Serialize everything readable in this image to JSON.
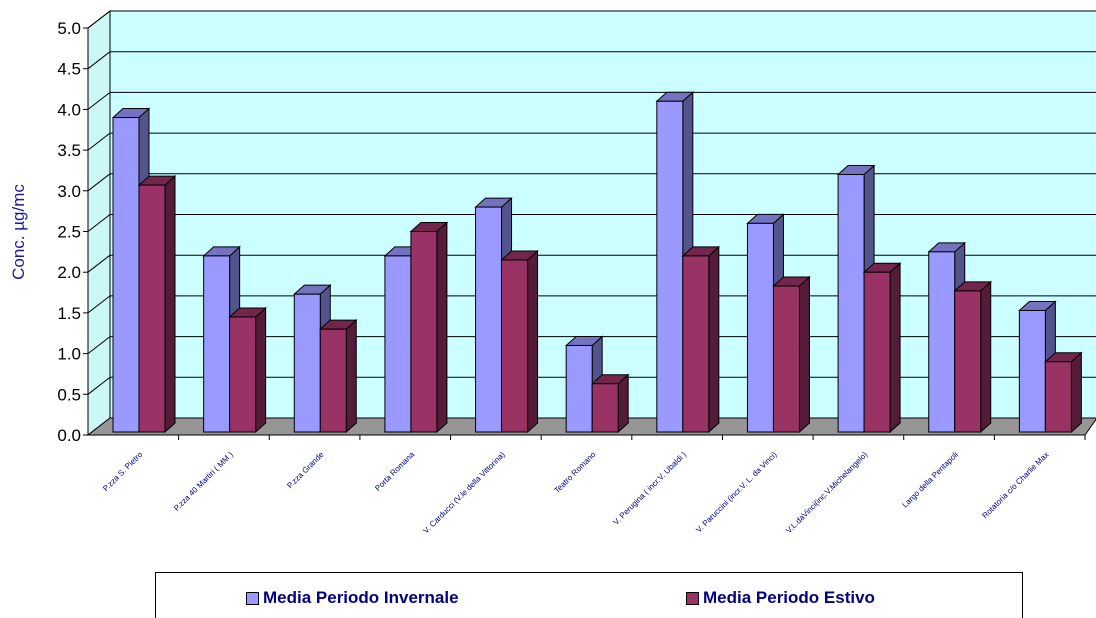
{
  "chart_data": {
    "type": "bar",
    "ylabel": "Conc. µg/mc",
    "ylim": [
      0,
      5.0
    ],
    "yticks": [
      "0.0",
      "0.5",
      "1.0",
      "1.5",
      "2.0",
      "2.5",
      "3.0",
      "3.5",
      "4.0",
      "4.5",
      "5.0"
    ],
    "grid": true,
    "legend_position": "bottom",
    "categories": [
      "P.zza S. Pietro",
      "P.zza 40 Martiri ( MM )",
      "P.zza Grande",
      "Porta Romana",
      "V. Carducci (V.le della Vittorina)",
      "Teatro Romano",
      "V. Perugina ( incr.V. Ubaldi )",
      "V. Paruccini (incr.V. L. da Vinci)",
      "V.L.daVinci(inc.V.Michelangelo)",
      "Largo della Pentapoli",
      "Rotatoria c/o Charlie Max"
    ],
    "series": [
      {
        "name": "Media Periodo Invernale",
        "color": "#9999ff",
        "values": [
          3.9,
          2.2,
          1.73,
          2.2,
          2.8,
          1.1,
          4.1,
          2.6,
          3.2,
          2.25,
          1.53
        ]
      },
      {
        "name": "Media Periodo Estivo",
        "color": "#993366",
        "values": [
          3.07,
          1.45,
          1.3,
          2.5,
          2.15,
          0.63,
          2.2,
          1.83,
          2.0,
          1.77,
          0.9
        ]
      }
    ]
  }
}
